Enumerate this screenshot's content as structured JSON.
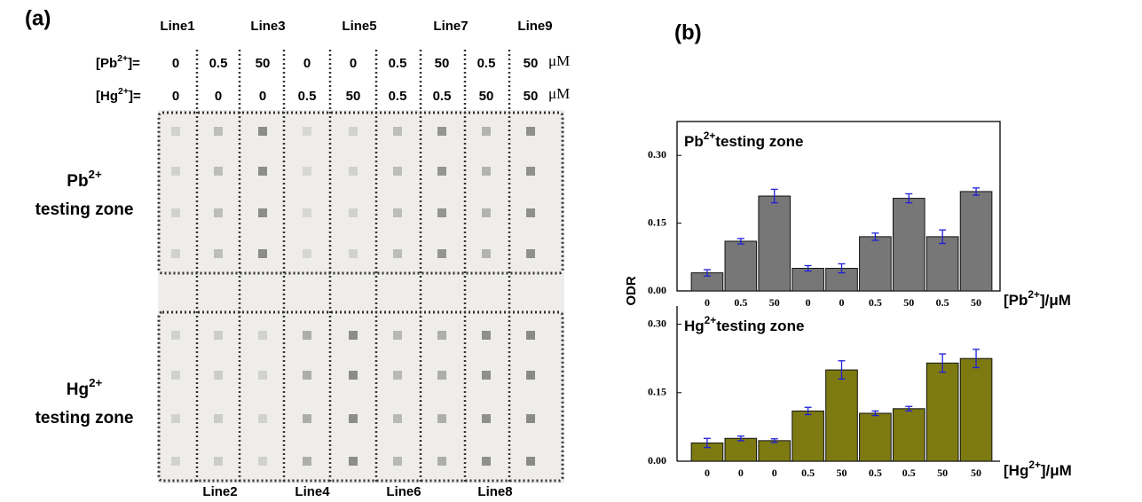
{
  "panel_a": {
    "label": "(a)",
    "top_lines": [
      "Line1",
      "Line3",
      "Line5",
      "Line7",
      "Line9"
    ],
    "bottom_lines": [
      "Line2",
      "Line4",
      "Line6",
      "Line8"
    ],
    "pb_row": {
      "label_parts": [
        "[Pb",
        "2+",
        "]="
      ],
      "values": [
        "0",
        "0.5",
        "50",
        "0",
        "0",
        "0.5",
        "50",
        "0.5",
        "50"
      ],
      "unit": "μM"
    },
    "hg_row": {
      "label_parts": [
        "[Hg",
        "2+",
        "]="
      ],
      "values": [
        "0",
        "0",
        "0",
        "0.5",
        "50",
        "0.5",
        "0.5",
        "50",
        "50"
      ],
      "unit": "μM"
    },
    "zones": [
      {
        "parts": [
          "Pb",
          "2+"
        ],
        "line2": "testing zone"
      },
      {
        "parts": [
          "Hg",
          "2+"
        ],
        "line2": "testing zone"
      }
    ]
  },
  "panel_b": {
    "label": "(b)",
    "ylabel": "ODR"
  },
  "chart_data": [
    {
      "type": "bar",
      "title_parts": [
        "Pb",
        "2+",
        "testing zone"
      ],
      "xlabel_parts": [
        "[Pb",
        "2+",
        "]/μM"
      ],
      "categories": [
        "0",
        "0.5",
        "50",
        "0",
        "0",
        "0.5",
        "50",
        "0.5",
        "50"
      ],
      "values": [
        0.04,
        0.11,
        0.21,
        0.05,
        0.05,
        0.12,
        0.205,
        0.12,
        0.22
      ],
      "errors": [
        0.007,
        0.006,
        0.015,
        0.006,
        0.01,
        0.008,
        0.01,
        0.015,
        0.008
      ],
      "color": "#777777",
      "error_color": "#1f1fd8",
      "ylim": [
        0,
        0.375
      ],
      "yticks": [
        {
          "value": 0,
          "label": "0.00"
        },
        {
          "value": 0.15,
          "label": "0.15"
        },
        {
          "value": 0.3,
          "label": "0.30"
        }
      ]
    },
    {
      "type": "bar",
      "title_parts": [
        "Hg",
        "2+",
        "testing zone"
      ],
      "xlabel_parts": [
        "[Hg",
        "2+",
        "]/μM"
      ],
      "categories": [
        "0",
        "0",
        "0",
        "0.5",
        "50",
        "0.5",
        "0.5",
        "50",
        "50"
      ],
      "values": [
        0.04,
        0.05,
        0.045,
        0.11,
        0.2,
        0.105,
        0.115,
        0.215,
        0.225
      ],
      "errors": [
        0.01,
        0.005,
        0.004,
        0.008,
        0.02,
        0.005,
        0.005,
        0.02,
        0.02
      ],
      "color": "#7d7a12",
      "error_color": "#1f1fd8",
      "ylim": [
        0,
        0.34
      ],
      "yticks": [
        {
          "value": 0,
          "label": "0.00"
        },
        {
          "value": 0.15,
          "label": "0.15"
        },
        {
          "value": 0.3,
          "label": "0.30"
        }
      ]
    }
  ]
}
